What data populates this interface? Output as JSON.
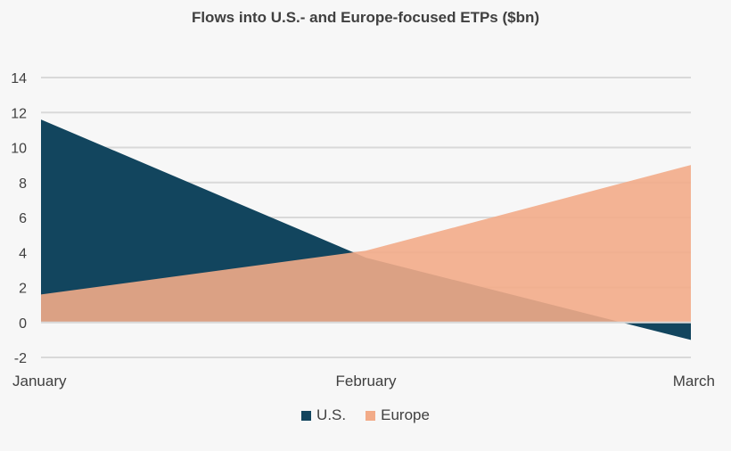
{
  "chart_data": {
    "type": "area",
    "title": "Flows into U.S.- and Europe-focused ETPs ($bn)",
    "categories": [
      "January",
      "February",
      "March"
    ],
    "series": [
      {
        "name": "U.S.",
        "values": [
          11.6,
          3.7,
          -1.0
        ],
        "color": "#12455e"
      },
      {
        "name": "Europe",
        "values": [
          1.6,
          4.1,
          9.0
        ],
        "color": "#f2ab88"
      }
    ],
    "ylim": [
      -2,
      14
    ],
    "yticks": [
      "-2",
      "0",
      "2",
      "4",
      "6",
      "8",
      "10",
      "12",
      "14"
    ],
    "grid": true,
    "legend_position": "bottom",
    "europe_fill_opacity": 0.9
  }
}
